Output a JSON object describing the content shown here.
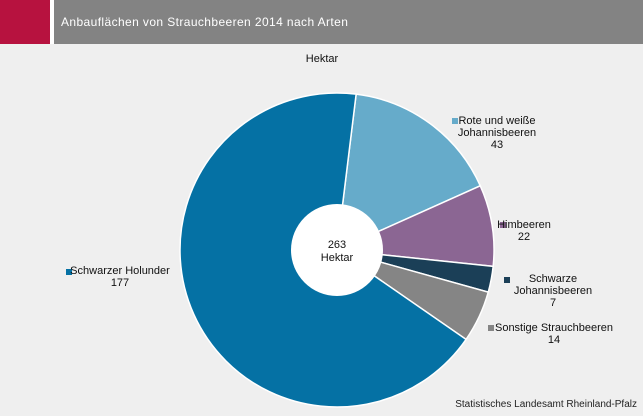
{
  "header": {
    "title": "Anbauflächen von Strauchbeeren 2014 nach Arten"
  },
  "chart_data": {
    "type": "pie",
    "subtitle": "Hektar",
    "center_value": "263",
    "center_unit": "Hektar",
    "slices": [
      {
        "label_lines": [
          "Rote und weiße",
          "Johannisbeeren"
        ],
        "value": 43,
        "color": "#66abca"
      },
      {
        "label_lines": [
          "Himbeeren"
        ],
        "value": 22,
        "color": "#8b6693"
      },
      {
        "label_lines": [
          "Schwarze",
          "Johannisbeeren"
        ],
        "value": 7,
        "color": "#1b3f57"
      },
      {
        "label_lines": [
          "Sonstige Strauchbeeren"
        ],
        "value": 14,
        "color": "#858585"
      },
      {
        "label_lines": [
          "Schwarzer Holunder"
        ],
        "value": 177,
        "color": "#0571a4"
      }
    ]
  },
  "footer": {
    "source": "Statistisches Landesamt Rheinland-Pfalz"
  }
}
